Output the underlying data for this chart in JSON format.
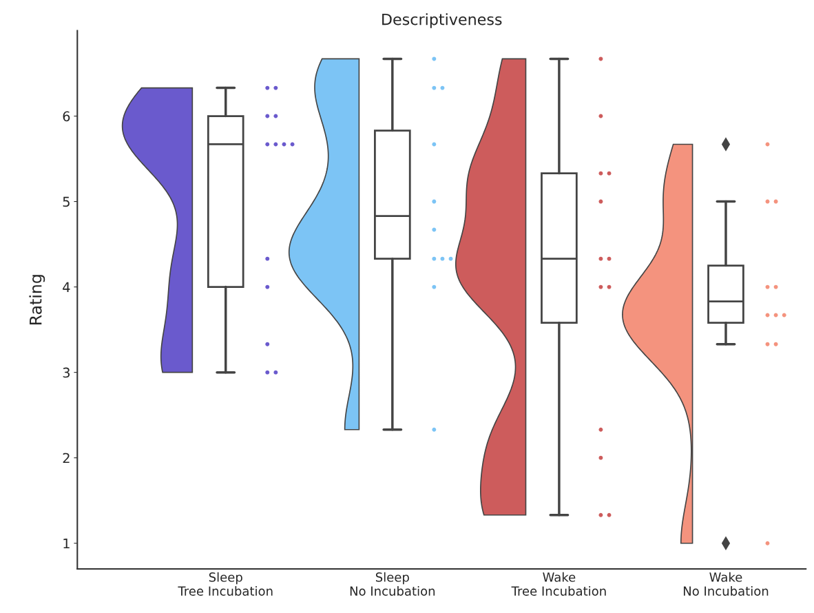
{
  "chart_data": {
    "type": "box",
    "title": "Descriptiveness",
    "ylabel": "Rating",
    "categories": [
      "Sleep\nTree Incubation",
      "Sleep\nNo Incubation",
      "Wake\nTree Incubation",
      "Wake\nNo Incubation"
    ],
    "boxes": [
      {
        "low": 3.0,
        "q1": 4.0,
        "median": 5.67,
        "q3": 6.0,
        "high": 6.33
      },
      {
        "low": 2.33,
        "q1": 4.33,
        "median": 4.83,
        "q3": 5.83,
        "high": 6.67
      },
      {
        "low": 1.33,
        "q1": 3.58,
        "median": 4.33,
        "q3": 5.33,
        "high": 6.67
      },
      {
        "low": 3.33,
        "q1": 3.58,
        "median": 3.83,
        "q3": 4.25,
        "high": 5.0,
        "outliers": [
          5.67,
          1.0
        ]
      }
    ],
    "series": [
      {
        "type": "scatter",
        "color": "#6a5acd",
        "x": [
          "Sleep\nTree Incubation",
          "Sleep\nTree Incubation",
          "Sleep\nTree Incubation",
          "Sleep\nTree Incubation",
          "Sleep\nTree Incubation",
          "Sleep\nTree Incubation",
          "Sleep\nTree Incubation",
          "Sleep\nTree Incubation",
          "Sleep\nTree Incubation",
          "Sleep\nTree Incubation",
          "Sleep\nTree Incubation",
          "Sleep\nTree Incubation",
          "Sleep\nTree Incubation"
        ],
        "values": [
          6.33,
          6.33,
          6.0,
          6.0,
          5.67,
          5.67,
          5.67,
          5.67,
          4.33,
          4.0,
          3.33,
          3.0,
          3.0
        ]
      },
      {
        "type": "scatter",
        "color": "#7cc4f5",
        "x": [
          "Sleep\nNo Incubation",
          "Sleep\nNo Incubation",
          "Sleep\nNo Incubation",
          "Sleep\nNo Incubation",
          "Sleep\nNo Incubation",
          "Sleep\nNo Incubation",
          "Sleep\nNo Incubation",
          "Sleep\nNo Incubation",
          "Sleep\nNo Incubation",
          "Sleep\nNo Incubation",
          "Sleep\nNo Incubation"
        ],
        "values": [
          6.67,
          6.33,
          6.33,
          5.67,
          5.0,
          4.67,
          4.33,
          4.33,
          4.33,
          4.0,
          2.33
        ]
      },
      {
        "type": "scatter",
        "color": "#cd5c5c",
        "x": [
          "Wake\nTree Incubation",
          "Wake\nTree Incubation",
          "Wake\nTree Incubation",
          "Wake\nTree Incubation",
          "Wake\nTree Incubation",
          "Wake\nTree Incubation",
          "Wake\nTree Incubation",
          "Wake\nTree Incubation",
          "Wake\nTree Incubation",
          "Wake\nTree Incubation",
          "Wake\nTree Incubation",
          "Wake\nTree Incubation",
          "Wake\nTree Incubation"
        ],
        "values": [
          6.67,
          6.0,
          5.33,
          5.33,
          5.0,
          4.33,
          4.33,
          4.0,
          4.0,
          2.33,
          2.0,
          1.33,
          1.33
        ]
      },
      {
        "type": "scatter",
        "color": "#f4937e",
        "x": [
          "Wake\nNo Incubation",
          "Wake\nNo Incubation",
          "Wake\nNo Incubation",
          "Wake\nNo Incubation",
          "Wake\nNo Incubation",
          "Wake\nNo Incubation",
          "Wake\nNo Incubation",
          "Wake\nNo Incubation",
          "Wake\nNo Incubation",
          "Wake\nNo Incubation",
          "Wake\nNo Incubation"
        ],
        "values": [
          5.67,
          5.0,
          5.0,
          4.0,
          4.0,
          3.67,
          3.67,
          3.67,
          3.33,
          3.33,
          1.0
        ]
      }
    ],
    "ylim": [
      0.7,
      7.0
    ],
    "yticks": [
      1,
      2,
      3,
      4,
      5,
      6
    ],
    "grid": false
  }
}
